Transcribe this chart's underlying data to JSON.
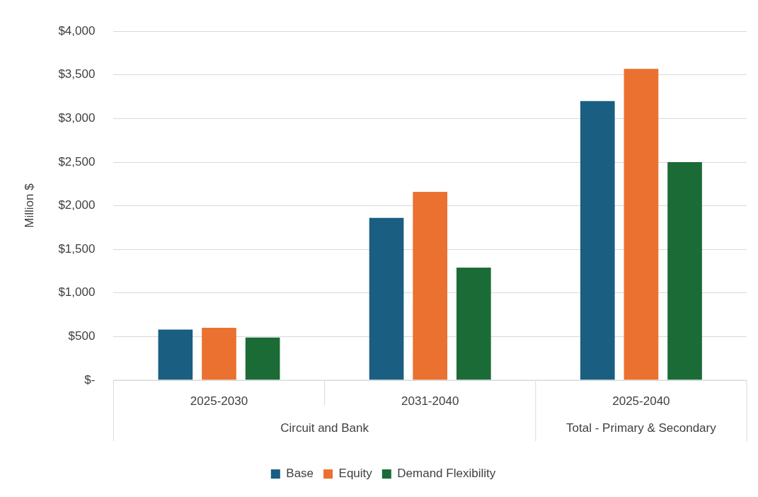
{
  "chart_data": {
    "type": "bar",
    "ylabel": "Million $",
    "categories": [
      "2025-2030",
      "2031-2040",
      "2025-2040"
    ],
    "series": [
      {
        "name": "Base",
        "color": "#1a5e82",
        "values": [
          580,
          1860,
          3200
        ]
      },
      {
        "name": "Equity",
        "color": "#ea7130",
        "values": [
          600,
          2160,
          3570
        ]
      },
      {
        "name": "Demand Flexibility",
        "color": "#1b6b37",
        "values": [
          490,
          1290,
          2500
        ]
      }
    ],
    "ylim": [
      0,
      4000
    ],
    "yticks": [
      {
        "value": 0,
        "label": "$-"
      },
      {
        "value": 500,
        "label": "$500"
      },
      {
        "value": 1000,
        "label": "$1,000"
      },
      {
        "value": 1500,
        "label": "$1,500"
      },
      {
        "value": 2000,
        "label": "$2,000"
      },
      {
        "value": 2500,
        "label": "$2,500"
      },
      {
        "value": 3000,
        "label": "$3,000"
      },
      {
        "value": 3500,
        "label": "$3,500"
      },
      {
        "value": 4000,
        "label": "$4,000"
      }
    ],
    "annotations": [
      "Circuit and Bank",
      "Total - Primary & Secondary"
    ],
    "grid": "y",
    "legend": "bottom"
  }
}
